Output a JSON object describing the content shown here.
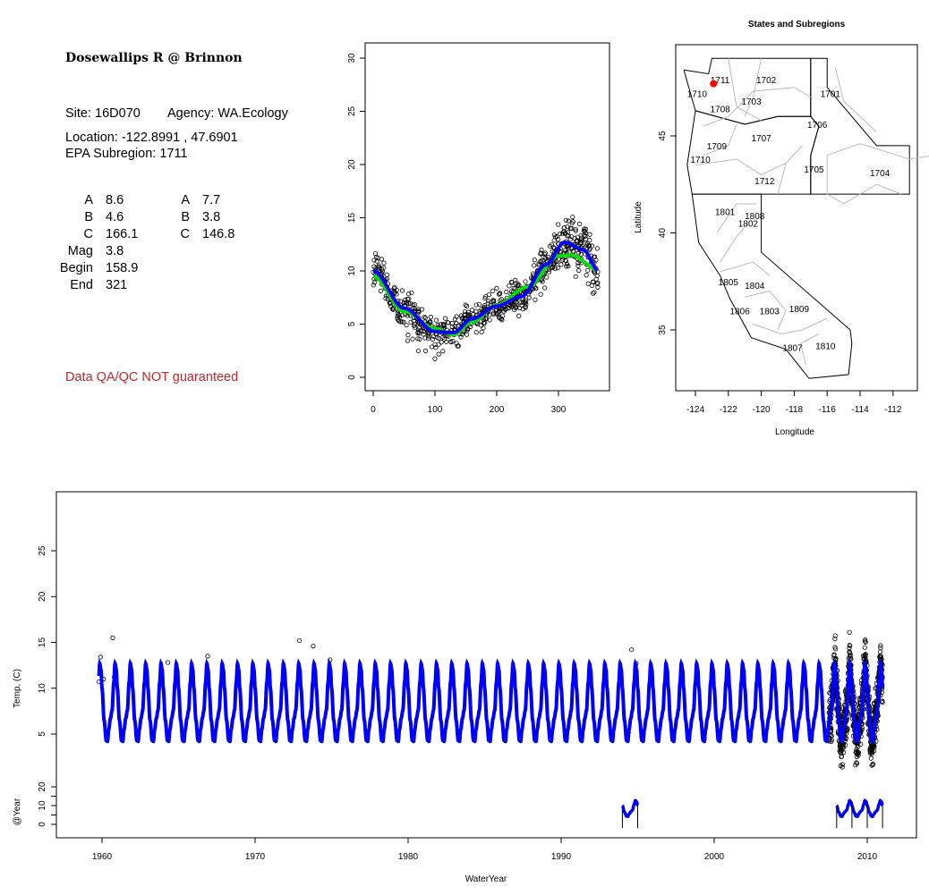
{
  "info": {
    "title": "Dosewallips R @ Brinnon",
    "site": "Site: 16D070",
    "agency": "Agency: WA.Ecology",
    "location": "Location: -122.8991 , 47.6901",
    "subregion": "EPA Subregion: 1711",
    "params_left": [
      {
        "label": "A",
        "value": "8.6"
      },
      {
        "label": "B",
        "value": "4.6"
      },
      {
        "label": "C",
        "value": "166.1"
      },
      {
        "label": "Mag",
        "value": "3.8"
      },
      {
        "label": "Begin",
        "value": "158.9"
      },
      {
        "label": "End",
        "value": "321"
      }
    ],
    "params_right": [
      {
        "label": "A",
        "value": "7.7"
      },
      {
        "label": "B",
        "value": "3.8"
      },
      {
        "label": "C",
        "value": "146.8"
      }
    ],
    "disclaimer": "Data QA/QC NOT guaranteed"
  },
  "chart_data": [
    {
      "type": "scatter",
      "name": "seasonal",
      "xlim": [
        0,
        365
      ],
      "ylim": [
        0,
        30
      ],
      "xticks": [
        "0",
        "100",
        "200",
        "300"
      ],
      "yticks": [
        "0",
        "5",
        "10",
        "15",
        "20",
        "25",
        "30"
      ],
      "series": [
        {
          "name": "fit-blue",
          "color": "#0000ff",
          "points": [
            [
              0,
              10
            ],
            [
              50,
              6.5
            ],
            [
              100,
              4.3
            ],
            [
              130,
              4.2
            ],
            [
              160,
              5.5
            ],
            [
              200,
              6.7
            ],
            [
              240,
              7.6
            ],
            [
              280,
              10.6
            ],
            [
              310,
              12.7
            ],
            [
              340,
              12
            ],
            [
              365,
              10
            ]
          ]
        },
        {
          "name": "fit-green",
          "color": "#00dd00",
          "points": [
            [
              0,
              9.5
            ],
            [
              50,
              6.2
            ],
            [
              100,
              4.6
            ],
            [
              130,
              4.0
            ],
            [
              160,
              5.2
            ],
            [
              200,
              6.8
            ],
            [
              250,
              8.5
            ],
            [
              300,
              11.4
            ],
            [
              320,
              11.5
            ],
            [
              365,
              10.1
            ]
          ]
        }
      ]
    },
    {
      "type": "map",
      "name": "subregions",
      "title": "States and Subregions",
      "xlabel": "Longitude",
      "ylabel": "Latitude",
      "xticks": [
        "-124",
        "-122",
        "-120",
        "-118",
        "-116",
        "-114",
        "-112"
      ],
      "yticks": [
        "35",
        "40",
        "45"
      ],
      "site": {
        "lon": -122.9,
        "lat": 47.69,
        "color": "#ff0000"
      },
      "labels": [
        {
          "t": "1711",
          "lon": -122.5,
          "lat": 47.9
        },
        {
          "t": "1702",
          "lon": -119.7,
          "lat": 47.9
        },
        {
          "t": "1701",
          "lon": -115.8,
          "lat": 47.2
        },
        {
          "t": "1710",
          "lon": -123.9,
          "lat": 47.2
        },
        {
          "t": "1703",
          "lon": -120.6,
          "lat": 46.8
        },
        {
          "t": "1708",
          "lon": -122.5,
          "lat": 46.4
        },
        {
          "t": "1706",
          "lon": -116.6,
          "lat": 45.6
        },
        {
          "t": "1707",
          "lon": -120.0,
          "lat": 44.9
        },
        {
          "t": "1709",
          "lon": -122.7,
          "lat": 44.5
        },
        {
          "t": "1710",
          "lon": -123.7,
          "lat": 43.8
        },
        {
          "t": "1705",
          "lon": -116.8,
          "lat": 43.3
        },
        {
          "t": "1704",
          "lon": -112.8,
          "lat": 43.1
        },
        {
          "t": "1712",
          "lon": -119.8,
          "lat": 42.7
        },
        {
          "t": "1801",
          "lon": -122.2,
          "lat": 41.1
        },
        {
          "t": "1808",
          "lon": -120.4,
          "lat": 40.9
        },
        {
          "t": "1802",
          "lon": -120.8,
          "lat": 40.5
        },
        {
          "t": "1805",
          "lon": -122.0,
          "lat": 37.5
        },
        {
          "t": "1804",
          "lon": -120.4,
          "lat": 37.3
        },
        {
          "t": "1806",
          "lon": -121.3,
          "lat": 36.0
        },
        {
          "t": "1803",
          "lon": -119.5,
          "lat": 36.0
        },
        {
          "t": "1809",
          "lon": -117.7,
          "lat": 36.1
        },
        {
          "t": "1807",
          "lon": -118.1,
          "lat": 34.1
        },
        {
          "t": "1810",
          "lon": -116.1,
          "lat": 34.2
        }
      ]
    },
    {
      "type": "line",
      "name": "timeseries",
      "xlabel": "WaterYear",
      "ylabel": "Temp. (C)",
      "ylabel2": "@Year",
      "xlim": [
        1957,
        2013
      ],
      "xticks": [
        "1960",
        "1970",
        "1980",
        "1990",
        "2000",
        "2010"
      ],
      "yticks": [
        "5",
        "10",
        "15",
        "20",
        "25"
      ],
      "yticks2": [
        "0",
        "10",
        "20"
      ],
      "blue_range": [
        1959.8,
        2011.0
      ],
      "dense_obs_range": [
        2007.5,
        2011.0
      ],
      "outliers": [
        [
          1959.9,
          13.4
        ],
        [
          1959.8,
          10.7
        ],
        [
          1960.1,
          11.0
        ],
        [
          1960.7,
          15.5
        ],
        [
          1960.8,
          11.2
        ],
        [
          1966.9,
          13.5
        ],
        [
          1964.3,
          12.8
        ],
        [
          1972.9,
          15.2
        ],
        [
          1973.8,
          14.6
        ],
        [
          1974.9,
          13.1
        ],
        [
          1994.6,
          14.2
        ],
        [
          1994.9,
          12.7
        ],
        [
          1994.4,
          5.2
        ]
      ],
      "year_segments": [
        [
          1994.0,
          1995.0
        ],
        [
          2008.0,
          2011.0
        ]
      ],
      "year_ticks": [
        1994.0,
        1995.0,
        2008.0,
        2009.0,
        2010.0,
        2011.0
      ]
    }
  ]
}
